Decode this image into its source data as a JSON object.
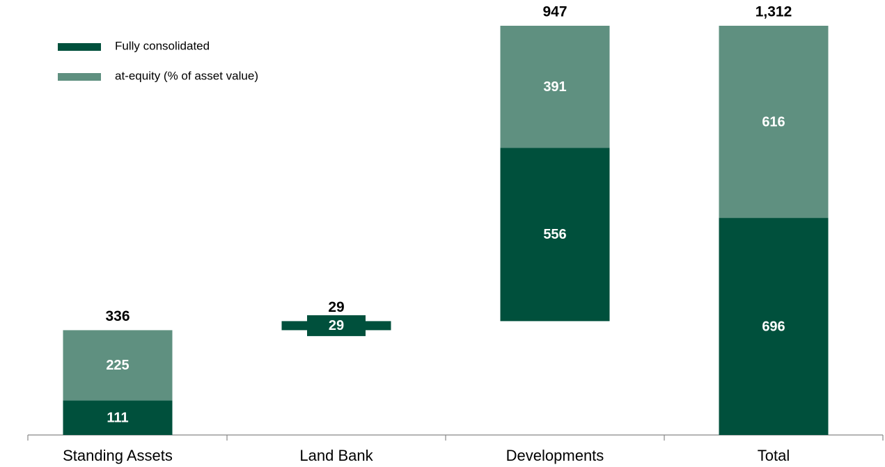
{
  "chart_data": {
    "type": "waterfall",
    "categories": [
      "Standing Assets",
      "Land Bank",
      "Developments",
      "Total"
    ],
    "series": [
      {
        "name": "Fully consolidated",
        "color": "#00503c",
        "values": [
          111,
          29,
          556,
          696
        ]
      },
      {
        "name": "at-equity (% of asset value)",
        "color": "#5f9080",
        "values": [
          225,
          null,
          391,
          616
        ]
      }
    ],
    "totals": [
      336,
      29,
      947,
      {
        "value": 1312,
        "label": "1,312"
      }
    ],
    "ylim": [
      0,
      1312
    ],
    "legend": "top-left"
  }
}
